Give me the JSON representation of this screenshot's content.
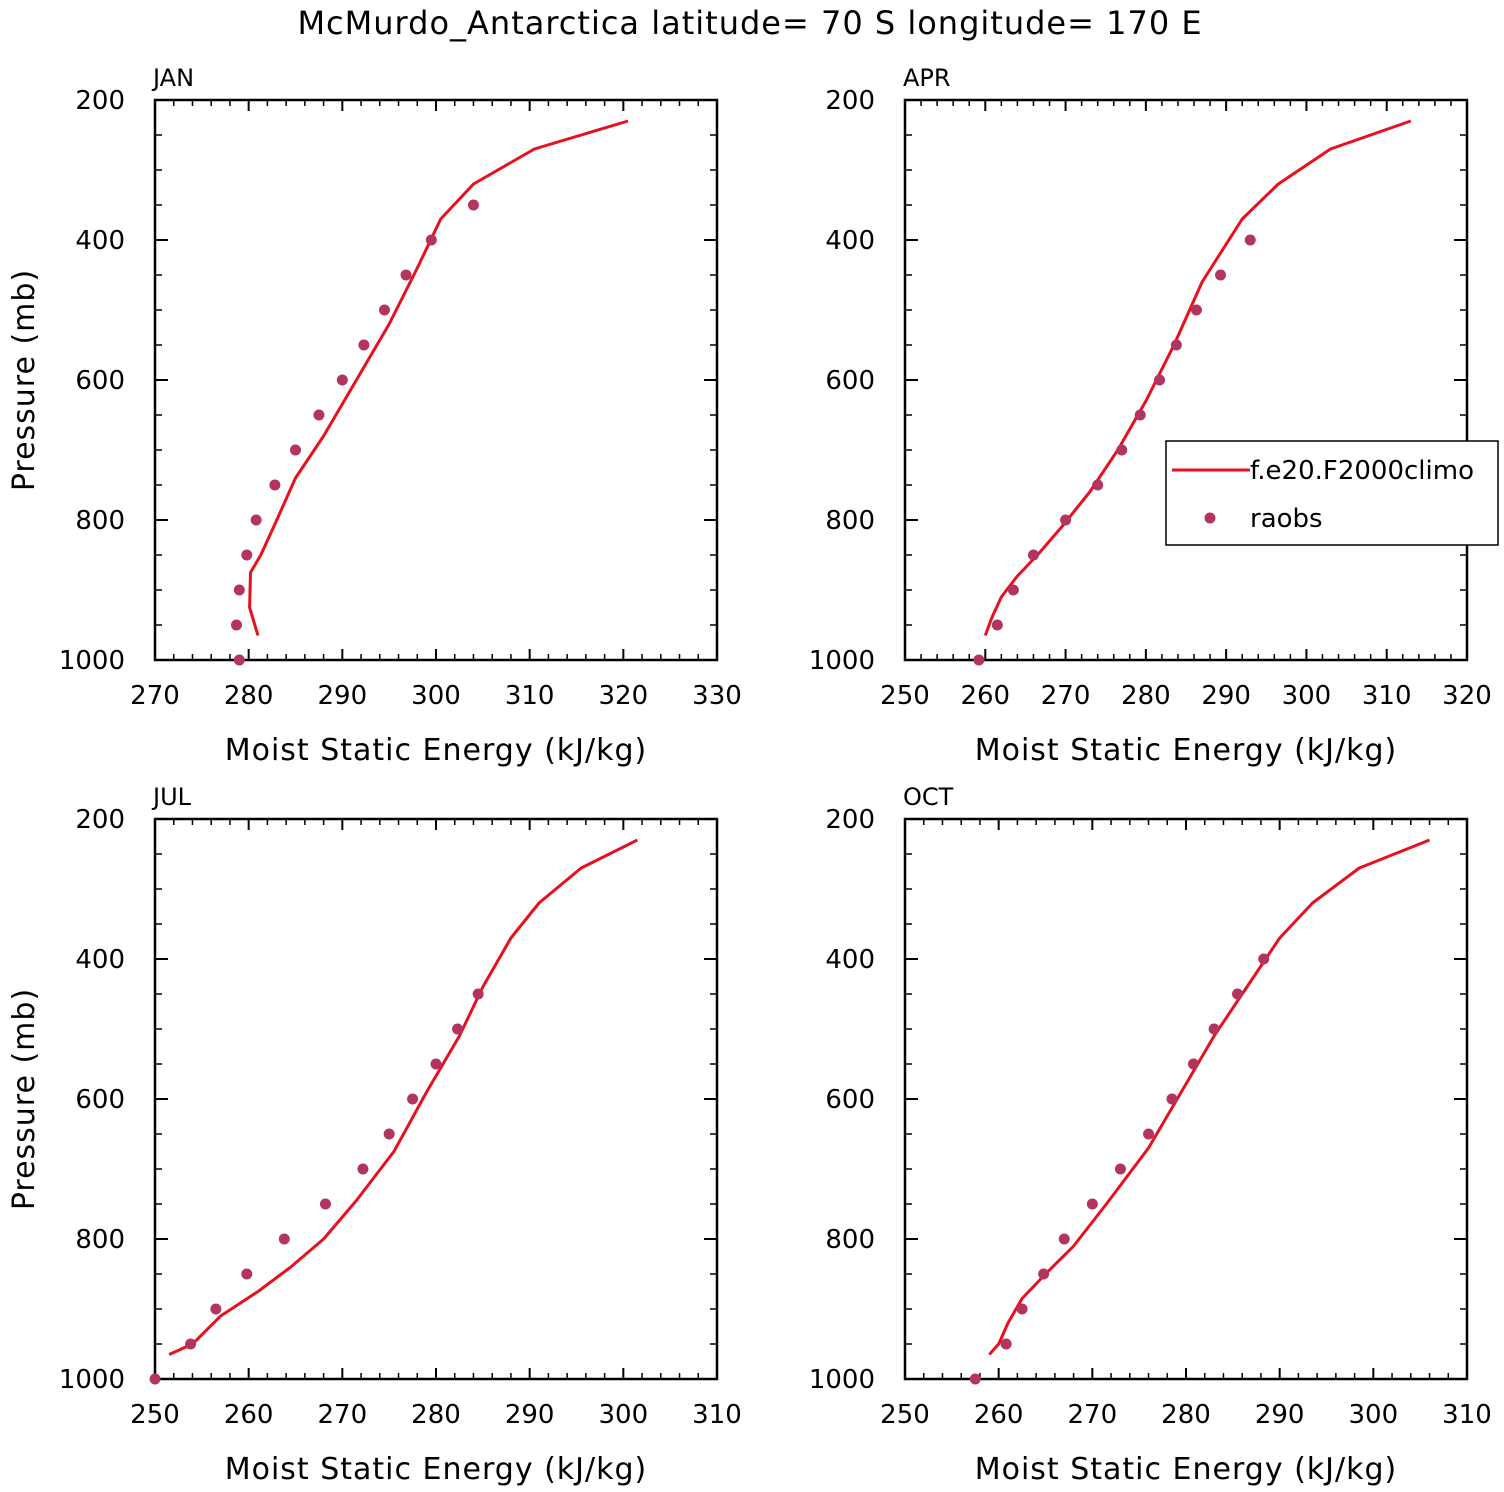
{
  "figure": {
    "title": "McMurdo_Antarctica  latitude= 70 S longitude= 170 E",
    "series_colors": {
      "model": "#e8101e",
      "obs": "#b3345e"
    },
    "legend": {
      "panel": 1,
      "placement": "right-middle",
      "entries": [
        {
          "label": "f.e20.F2000climo",
          "kind": "line",
          "color": "#e8101e"
        },
        {
          "label": "raobs",
          "kind": "marker",
          "color": "#b3345e"
        }
      ]
    }
  },
  "chart_data": [
    {
      "type": "line",
      "panel_label": "JAN",
      "xlabel": "Moist Static Energy (kJ/kg)",
      "ylabel": "Pressure (mb)",
      "xlim": [
        270,
        330
      ],
      "xticks": [
        270,
        280,
        290,
        300,
        310,
        320,
        330
      ],
      "ylim": [
        1000,
        200
      ],
      "yticks": [
        200,
        400,
        600,
        800,
        1000
      ],
      "series": [
        {
          "name": "f.e20.F2000climo",
          "kind": "line",
          "x": [
            281.0,
            280.1,
            280.2,
            281.3,
            283.0,
            285.0,
            288.0,
            291.5,
            295.0,
            298.0,
            300.5,
            304.0,
            310.5,
            320.5
          ],
          "y": [
            965,
            925,
            875,
            850,
            800,
            740,
            680,
            600,
            520,
            440,
            370,
            320,
            270,
            230
          ]
        },
        {
          "name": "raobs",
          "kind": "scatter",
          "x": [
            279.0,
            278.7,
            279.0,
            279.8,
            280.8,
            282.8,
            285.0,
            287.5,
            290.0,
            292.3,
            294.5,
            296.8,
            299.5,
            304.0
          ],
          "y": [
            1000,
            950,
            900,
            850,
            800,
            750,
            700,
            650,
            600,
            550,
            500,
            450,
            400,
            350
          ]
        }
      ]
    },
    {
      "type": "line",
      "panel_label": "APR",
      "xlabel": "Moist Static Energy (kJ/kg)",
      "ylabel": "",
      "xlim": [
        250,
        320
      ],
      "xticks": [
        250,
        260,
        270,
        280,
        290,
        300,
        310,
        320
      ],
      "ylim": [
        1000,
        200
      ],
      "yticks": [
        200,
        400,
        600,
        800,
        1000
      ],
      "series": [
        {
          "name": "f.e20.F2000climo",
          "kind": "line",
          "x": [
            260.0,
            260.8,
            262.0,
            264.0,
            266.5,
            269.5,
            273.0,
            276.5,
            280.0,
            283.5,
            287.0,
            292.0,
            296.5,
            303.0,
            313.0
          ],
          "y": [
            965,
            940,
            910,
            880,
            850,
            810,
            760,
            700,
            630,
            550,
            460,
            370,
            320,
            270,
            230
          ]
        },
        {
          "name": "raobs",
          "kind": "scatter",
          "x": [
            259.2,
            261.5,
            263.5,
            266.0,
            270.0,
            274.0,
            277.0,
            279.3,
            281.7,
            283.8,
            286.3,
            289.3,
            293.0
          ],
          "y": [
            1000,
            950,
            900,
            850,
            800,
            750,
            700,
            650,
            600,
            550,
            500,
            450,
            400
          ]
        }
      ]
    },
    {
      "type": "line",
      "panel_label": "JUL",
      "xlabel": "Moist Static Energy (kJ/kg)",
      "ylabel": "Pressure (mb)",
      "xlim": [
        250,
        310
      ],
      "xticks": [
        250,
        260,
        270,
        280,
        290,
        300,
        310
      ],
      "ylim": [
        1000,
        200
      ],
      "yticks": [
        200,
        400,
        600,
        800,
        1000
      ],
      "series": [
        {
          "name": "f.e20.F2000climo",
          "kind": "line",
          "x": [
            251.5,
            254.0,
            257.0,
            261.0,
            264.5,
            268.0,
            271.5,
            275.5,
            279.0,
            282.5,
            285.0,
            288.0,
            291.0,
            295.5,
            301.5
          ],
          "y": [
            965,
            950,
            910,
            875,
            840,
            800,
            745,
            675,
            590,
            510,
            440,
            370,
            320,
            270,
            230
          ]
        },
        {
          "name": "raobs",
          "kind": "scatter",
          "x": [
            250.0,
            253.8,
            256.5,
            259.8,
            263.8,
            268.2,
            272.2,
            275.0,
            277.5,
            280.0,
            282.3,
            284.5
          ],
          "y": [
            1000,
            950,
            900,
            850,
            800,
            750,
            700,
            650,
            600,
            550,
            500,
            450
          ]
        }
      ]
    },
    {
      "type": "line",
      "panel_label": "OCT",
      "xlabel": "Moist Static Energy (kJ/kg)",
      "ylabel": "",
      "xlim": [
        250,
        310
      ],
      "xticks": [
        250,
        260,
        270,
        280,
        290,
        300,
        310
      ],
      "ylim": [
        1000,
        200
      ],
      "yticks": [
        200,
        400,
        600,
        800,
        1000
      ],
      "series": [
        {
          "name": "f.e20.F2000climo",
          "kind": "line",
          "x": [
            259.0,
            260.0,
            261.0,
            262.5,
            265.0,
            268.0,
            271.5,
            276.0,
            279.5,
            283.0,
            286.5,
            290.0,
            293.5,
            298.5,
            306.0
          ],
          "y": [
            965,
            950,
            920,
            885,
            850,
            810,
            750,
            670,
            590,
            510,
            440,
            370,
            320,
            270,
            230
          ]
        },
        {
          "name": "raobs",
          "kind": "scatter",
          "x": [
            257.5,
            260.8,
            262.5,
            264.8,
            267.0,
            270.0,
            273.0,
            276.0,
            278.5,
            280.8,
            283.0,
            285.5,
            288.3
          ],
          "y": [
            1000,
            950,
            900,
            850,
            800,
            750,
            700,
            650,
            600,
            550,
            500,
            450,
            400
          ]
        }
      ]
    }
  ]
}
